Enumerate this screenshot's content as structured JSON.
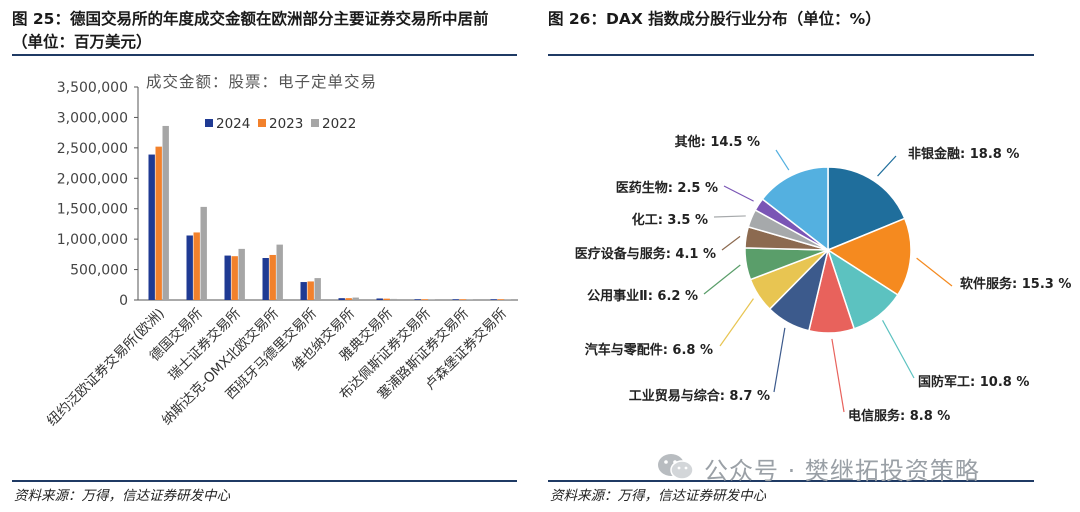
{
  "left": {
    "title": "图 25：德国交易所的年度成交金额在欧洲部分主要证券交易所中居前（单位：百万美元）",
    "source": "资料来源：万得，信达证券研发中心"
  },
  "right": {
    "title": "图 26：DAX 指数成分股行业分布（单位：%）",
    "source": "资料来源：万得，信达证券研发中心"
  },
  "watermark": {
    "text": "公众号 · 樊继拓投资策略",
    "icon": "wechat-icon"
  },
  "colors": {
    "rule": "#1f3a64",
    "s2024": "#1f3a93",
    "s2023": "#f2812c",
    "s2022": "#a6a6a6"
  },
  "chart_data": [
    {
      "type": "bar",
      "title": "",
      "annotation": "成交金额：股票：电子定单交易",
      "xlabel": "",
      "ylabel": "",
      "ylim": [
        0,
        3500000
      ],
      "yticks": [
        0,
        500000,
        1000000,
        1500000,
        2000000,
        2500000,
        3000000,
        3500000
      ],
      "ytick_labels": [
        "0",
        "500,000",
        "1,000,000",
        "1,500,000",
        "2,000,000",
        "2,500,000",
        "3,000,000",
        "3,500,000"
      ],
      "legend_position": "top",
      "grid": false,
      "categories": [
        "纽约泛欧证券交易所(欧洲)",
        "德国交易所",
        "瑞士证券交易所",
        "纳斯达克-OMX北欧交易所",
        "西班牙马德里交易所",
        "维也纳交易所",
        "雅典交易所",
        "布达佩斯证券交易所",
        "塞浦路斯证券交易所",
        "卢森堡证券交易所"
      ],
      "series": [
        {
          "name": "2024",
          "color": "#1f3a93",
          "values": [
            2390000,
            1060000,
            730000,
            690000,
            295000,
            30000,
            25000,
            5000,
            1000,
            500
          ]
        },
        {
          "name": "2023",
          "color": "#f2812c",
          "values": [
            2520000,
            1110000,
            720000,
            740000,
            305000,
            30000,
            22000,
            4000,
            1000,
            500
          ]
        },
        {
          "name": "2022",
          "color": "#a6a6a6",
          "values": [
            2860000,
            1530000,
            840000,
            910000,
            360000,
            40000,
            18000,
            6000,
            1000,
            500
          ]
        }
      ]
    },
    {
      "type": "pie",
      "title": "",
      "slices": [
        {
          "label": "非银金融: 18.8 %",
          "value": 18.8,
          "color": "#1f6e9c"
        },
        {
          "label": "软件服务: 15.3 %",
          "value": 15.3,
          "color": "#f58a1f"
        },
        {
          "label": "国防军工: 10.8 %",
          "value": 10.8,
          "color": "#5cc2c0"
        },
        {
          "label": "电信服务: 8.8 %",
          "value": 8.8,
          "color": "#e8625c"
        },
        {
          "label": "工业贸易与综合: 8.7 %",
          "value": 8.7,
          "color": "#3c5a8c"
        },
        {
          "label": "汽车与零配件: 6.8 %",
          "value": 6.8,
          "color": "#e8c552"
        },
        {
          "label": "公用事业Ⅱ: 6.2 %",
          "value": 6.2,
          "color": "#5a9e6a"
        },
        {
          "label": "医疗设备与服务: 4.1 %",
          "value": 4.1,
          "color": "#8c6a50"
        },
        {
          "label": "化工: 3.5 %",
          "value": 3.5,
          "color": "#a6a9ab"
        },
        {
          "label": "医药生物: 2.5 %",
          "value": 2.5,
          "color": "#7a55b5"
        },
        {
          "label": "其他: 14.5 %",
          "value": 14.5,
          "color": "#54b0e0"
        }
      ]
    }
  ]
}
